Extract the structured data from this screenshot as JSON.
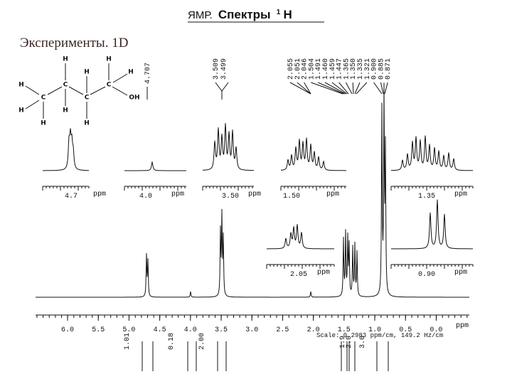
{
  "header": {
    "title_prefix": "ЯМР.",
    "title_main": "Спектры",
    "title_sup": "1",
    "title_nucleus": "H"
  },
  "subtitle": "Эксперименты. 1D",
  "molecule": {
    "atoms": [
      "H",
      "H",
      "H",
      "H",
      "H",
      "C",
      "C",
      "C",
      "C",
      "OH",
      "H",
      "H",
      "H",
      "H"
    ]
  },
  "peak_labels": {
    "oh": "4.707",
    "ch2o": [
      "3.509",
      "3.499"
    ],
    "aliphatic": [
      "2.055",
      "2.051",
      "2.046",
      "1.504",
      "1.491",
      "1.460",
      "1.459",
      "1.447",
      "1.365",
      "1.350",
      "1.335",
      "1.321",
      "0.900",
      "0.885",
      "0.871"
    ]
  },
  "insets": [
    {
      "center": "4.7",
      "unit": "ppm"
    },
    {
      "center": "4.0",
      "unit": "ppm"
    },
    {
      "center": "3.50",
      "unit": "ppm"
    },
    {
      "center": "1.50",
      "unit": "ppm"
    },
    {
      "center": "1.35",
      "unit": "ppm"
    },
    {
      "center": "2.05",
      "unit": "ppm"
    },
    {
      "center": "0.90",
      "unit": "ppm"
    }
  ],
  "axis": {
    "ticks": [
      "6.0",
      "5.5",
      "5.0",
      "4.5",
      "4.0",
      "3.5",
      "3.0",
      "2.5",
      "2.0",
      "1.5",
      "1.0",
      "0.5",
      "0.0"
    ],
    "unit": "ppm"
  },
  "integrals": [
    "1.01",
    "0.18",
    "2.00",
    "1.9",
    "2.0",
    "3.0"
  ],
  "scale": "Scale: 0.2983 ppm/cm, 149.2 Hz/cm"
}
